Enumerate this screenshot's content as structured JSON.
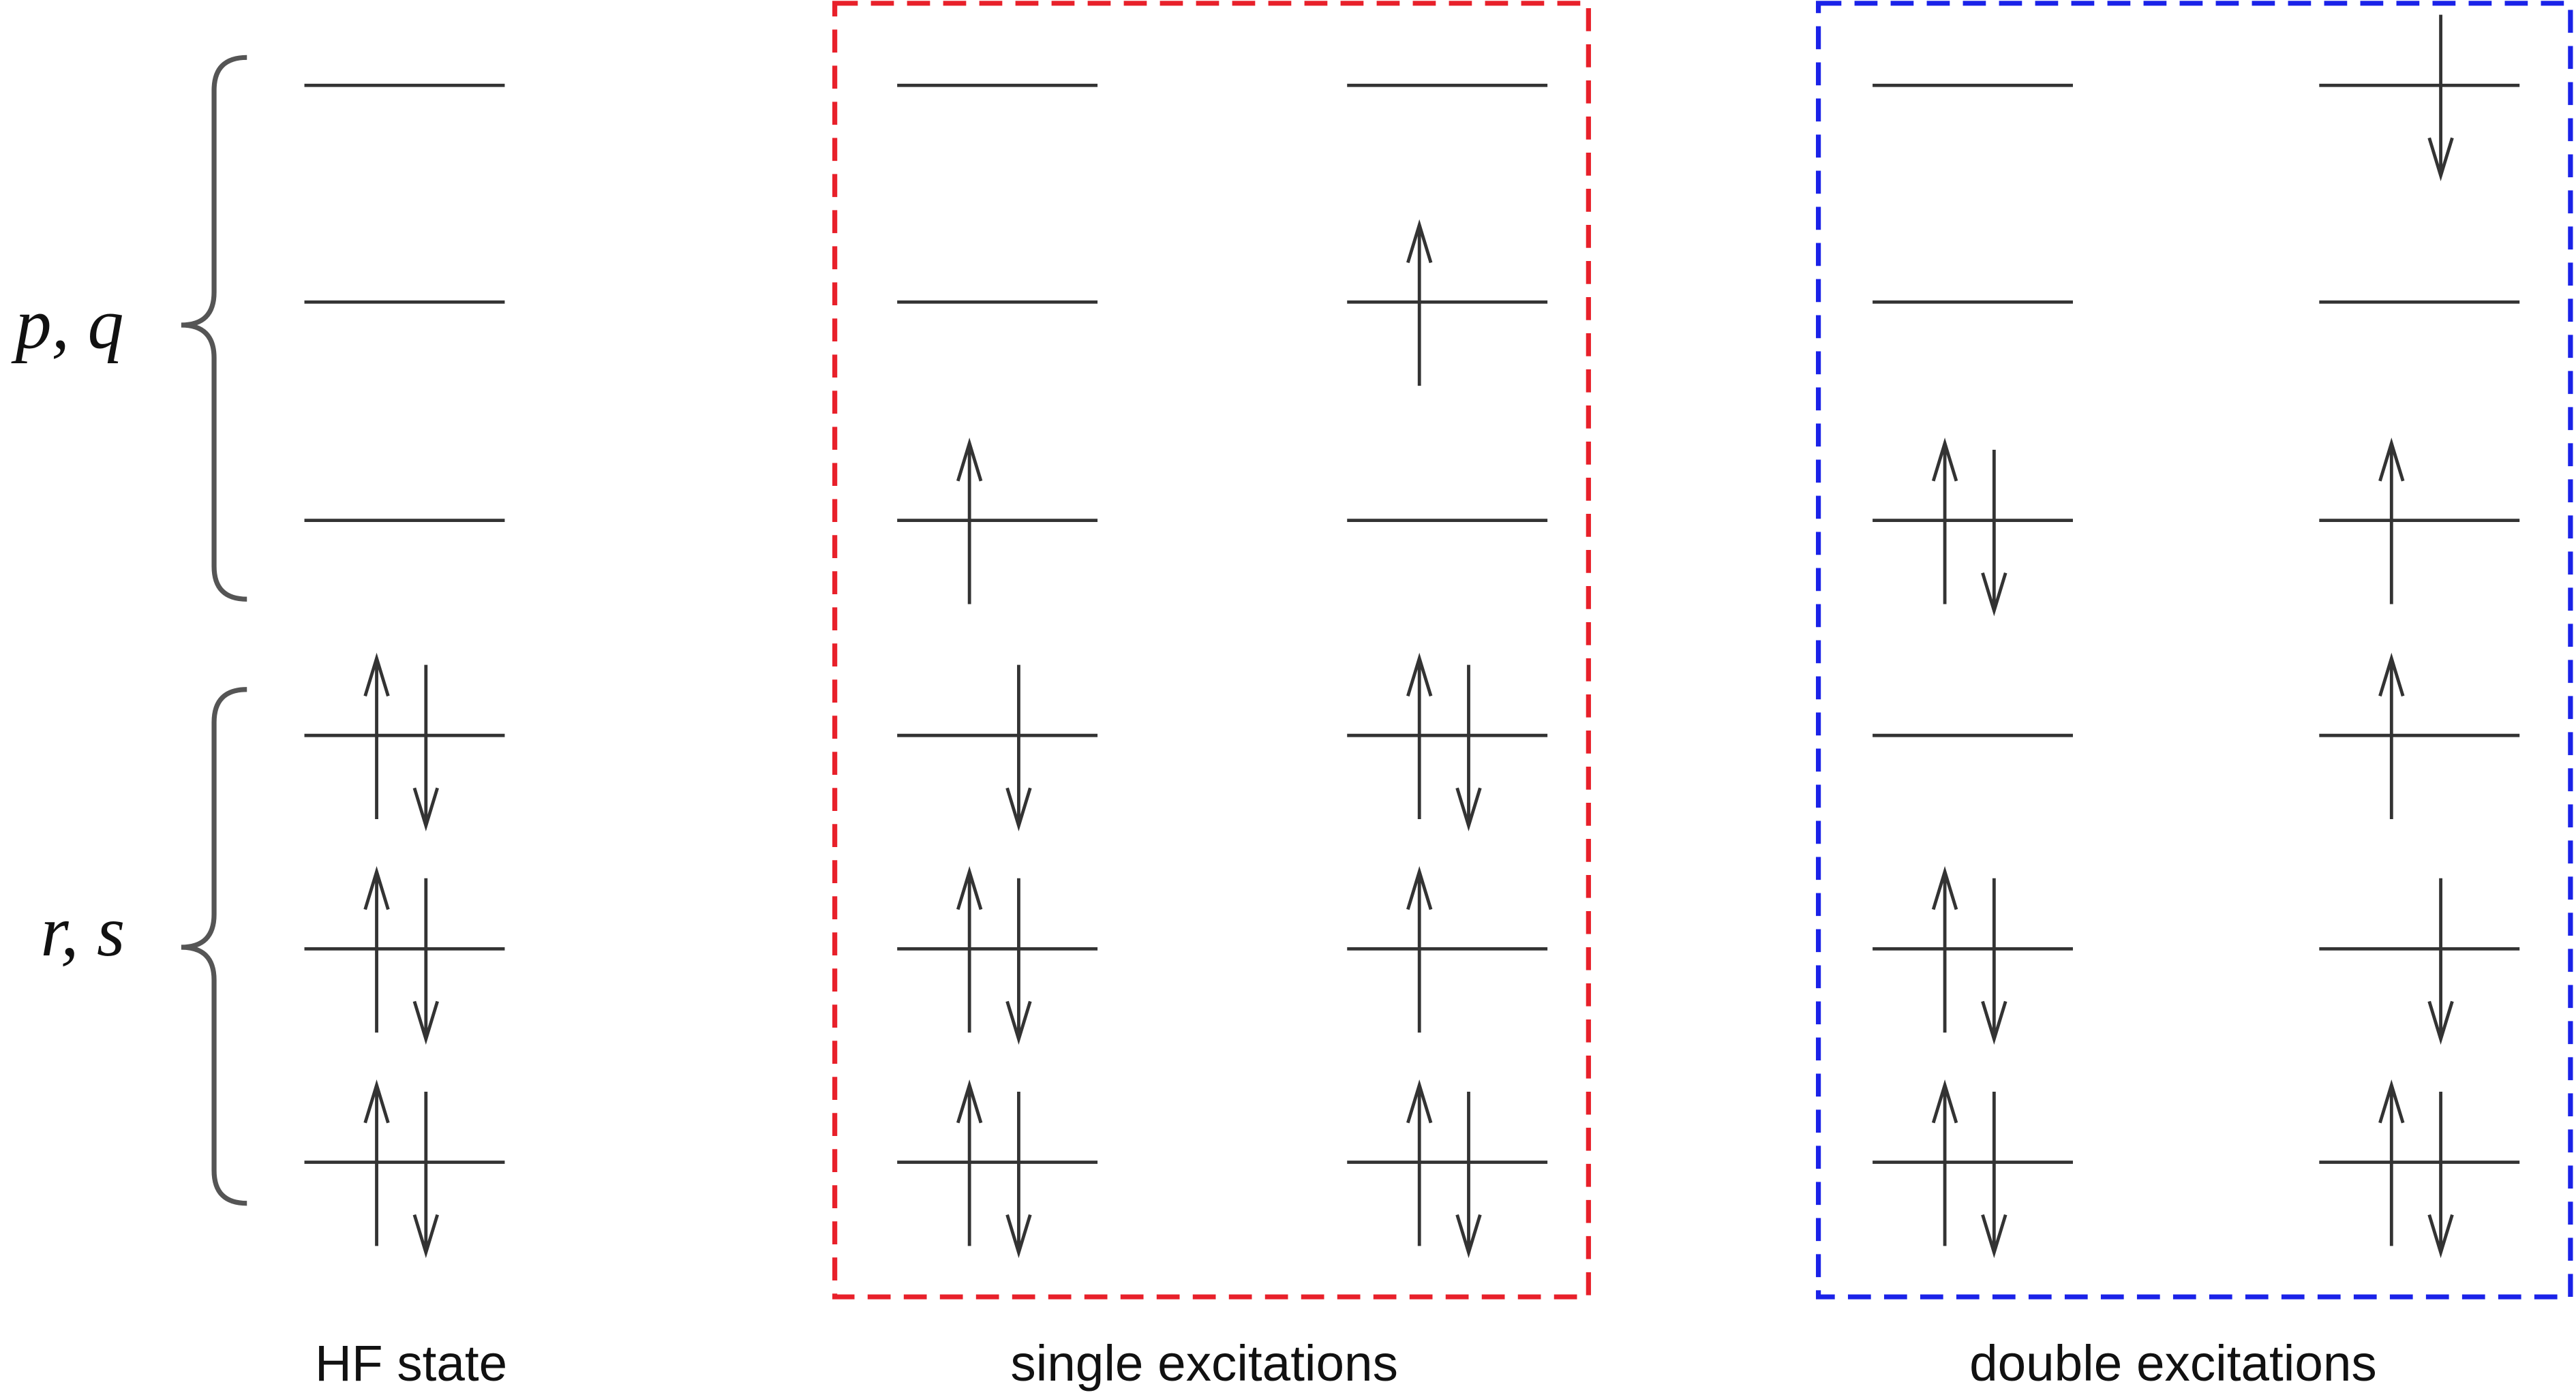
{
  "braces": [
    {
      "label": "p, q"
    },
    {
      "label": "r, s"
    }
  ],
  "groups": [
    "HF state",
    "single excitations",
    "double excitations"
  ]
}
